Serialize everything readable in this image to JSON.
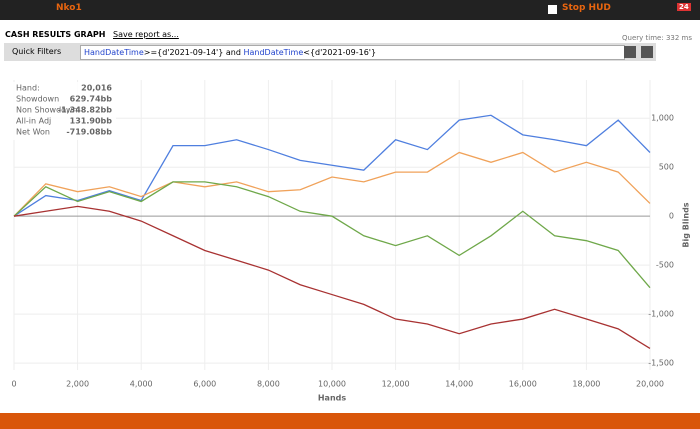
{
  "header": {
    "user": "Nko1",
    "stop_hud": "Stop HUD",
    "badge": "24"
  },
  "toolbar": {
    "title": "CASH RESULTS GRAPH",
    "save": "Save report as...",
    "query_time": "Query time: 332 ms"
  },
  "filter": {
    "label": "Quick Filters",
    "parts": [
      "HandDateTime",
      ">={d'2021-09-14'} and ",
      "HandDateTime",
      "<{d'2021-09-16'}"
    ]
  },
  "stats": [
    [
      "Hand:",
      "20,016"
    ],
    [
      "Showdown",
      "629.74bb"
    ],
    [
      "Non Showdown",
      "-1,348.82bb"
    ],
    [
      "All-in Adj",
      "131.90bb"
    ],
    [
      "Net Won",
      "-719.08bb"
    ]
  ],
  "chart_data": {
    "type": "line",
    "x_label": "Hands",
    "y_label": "Big Blinds",
    "x": [
      0,
      1000,
      2000,
      3000,
      4000,
      5000,
      6000,
      7000,
      8000,
      9000,
      10000,
      11000,
      12000,
      13000,
      14000,
      15000,
      16000,
      17000,
      18000,
      19000,
      20000
    ],
    "series": [
      {
        "color": "#4f7fdf",
        "values": [
          0,
          210,
          160,
          260,
          160,
          720,
          720,
          780,
          680,
          570,
          520,
          470,
          780,
          680,
          980,
          1030,
          830,
          780,
          720,
          980,
          650
        ]
      },
      {
        "color": "#f0a25a",
        "values": [
          0,
          330,
          250,
          300,
          200,
          350,
          300,
          350,
          250,
          270,
          400,
          350,
          450,
          450,
          650,
          550,
          650,
          450,
          550,
          450,
          130
        ]
      },
      {
        "color": "#6fa84a",
        "values": [
          0,
          300,
          150,
          250,
          150,
          350,
          350,
          300,
          200,
          50,
          0,
          -200,
          -300,
          -200,
          -400,
          -200,
          50,
          -200,
          -250,
          -350,
          -730
        ]
      },
      {
        "color": "#a83232",
        "values": [
          0,
          50,
          100,
          50,
          -50,
          -200,
          -350,
          -450,
          -550,
          -700,
          -800,
          -900,
          -1050,
          -1100,
          -1200,
          -1100,
          -1050,
          -950,
          -1050,
          -1150,
          -1350
        ]
      }
    ],
    "xlim": [
      0,
      20000
    ],
    "ylim": [
      -1570,
      1390
    ],
    "xticks": [
      0,
      {
        "value": 2000,
        "label": "2,000"
      },
      {
        "value": 4000,
        "label": "4,000"
      },
      {
        "value": 6000,
        "label": "6,000"
      },
      {
        "value": 8000,
        "label": "8,000"
      },
      {
        "value": 10000,
        "label": "10,000"
      },
      {
        "value": 12000,
        "label": "12,000"
      },
      {
        "value": 14000,
        "label": "14,000"
      },
      {
        "value": 16000,
        "label": "16,000"
      },
      {
        "value": 18000,
        "label": "18,000"
      },
      {
        "value": 20000,
        "label": "20,000"
      }
    ],
    "yticks": [
      {
        "value": -1500,
        "label": "-1,500"
      },
      {
        "value": -1000,
        "label": "-1,000"
      },
      -500,
      0,
      500,
      {
        "value": 1000,
        "label": "1,000"
      }
    ],
    "grid": true
  }
}
